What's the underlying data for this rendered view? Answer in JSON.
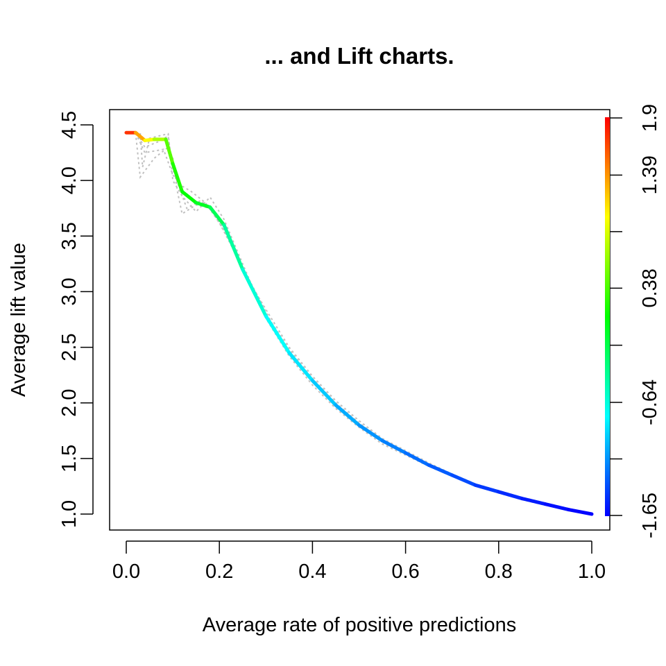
{
  "chart_data": {
    "type": "line",
    "title": "... and Lift charts.",
    "xlabel": "Average rate of positive predictions",
    "ylabel": "Average lift value",
    "xlim": [
      0.0,
      1.0
    ],
    "ylim": [
      1.0,
      4.5
    ],
    "x_ticks": [
      "0.0",
      "0.2",
      "0.4",
      "0.6",
      "0.8",
      "1.0"
    ],
    "y_ticks": [
      "1.0",
      "1.5",
      "2.0",
      "2.5",
      "3.0",
      "3.5",
      "4.0",
      "4.5"
    ],
    "grid": false,
    "colorbar": {
      "ticks": [
        "-1.65",
        "-0.64",
        "0.38",
        "1.39",
        "1.9"
      ],
      "range": [
        -1.65,
        1.9
      ],
      "colors": [
        "#0000ff",
        "#00ffff",
        "#00ff00",
        "#ffff00",
        "#ff0000"
      ]
    },
    "average_curve": [
      {
        "x": 0.0,
        "y": 4.43,
        "c": 1.9
      },
      {
        "x": 0.02,
        "y": 4.43,
        "c": 1.55
      },
      {
        "x": 0.04,
        "y": 4.36,
        "c": 1.1
      },
      {
        "x": 0.06,
        "y": 4.37,
        "c": 0.9
      },
      {
        "x": 0.085,
        "y": 4.37,
        "c": 0.55
      },
      {
        "x": 0.1,
        "y": 4.15,
        "c": 0.3
      },
      {
        "x": 0.12,
        "y": 3.9,
        "c": 0.15
      },
      {
        "x": 0.15,
        "y": 3.8,
        "c": 0.05
      },
      {
        "x": 0.18,
        "y": 3.76,
        "c": -0.05
      },
      {
        "x": 0.21,
        "y": 3.6,
        "c": -0.3
      },
      {
        "x": 0.25,
        "y": 3.2,
        "c": -0.55
      },
      {
        "x": 0.3,
        "y": 2.78,
        "c": -0.7
      },
      {
        "x": 0.35,
        "y": 2.45,
        "c": -0.8
      },
      {
        "x": 0.4,
        "y": 2.2,
        "c": -0.9
      },
      {
        "x": 0.45,
        "y": 1.98,
        "c": -1.0
      },
      {
        "x": 0.5,
        "y": 1.8,
        "c": -1.1
      },
      {
        "x": 0.55,
        "y": 1.66,
        "c": -1.17
      },
      {
        "x": 0.6,
        "y": 1.55,
        "c": -1.24
      },
      {
        "x": 0.65,
        "y": 1.44,
        "c": -1.3
      },
      {
        "x": 0.7,
        "y": 1.35,
        "c": -1.36
      },
      {
        "x": 0.75,
        "y": 1.26,
        "c": -1.42
      },
      {
        "x": 0.8,
        "y": 1.2,
        "c": -1.48
      },
      {
        "x": 0.85,
        "y": 1.14,
        "c": -1.53
      },
      {
        "x": 0.9,
        "y": 1.09,
        "c": -1.58
      },
      {
        "x": 0.95,
        "y": 1.04,
        "c": -1.62
      },
      {
        "x": 1.0,
        "y": 1.0,
        "c": -1.65
      }
    ],
    "run_curves": [
      [
        [
          0.0,
          4.43
        ],
        [
          0.02,
          4.43
        ],
        [
          0.03,
          4.03
        ],
        [
          0.06,
          4.2
        ],
        [
          0.09,
          4.3
        ],
        [
          0.1,
          4.2
        ],
        [
          0.11,
          3.9
        ],
        [
          0.12,
          3.7
        ],
        [
          0.15,
          3.78
        ],
        [
          0.18,
          3.75
        ],
        [
          0.21,
          3.55
        ],
        [
          0.25,
          3.22
        ],
        [
          0.3,
          2.8
        ],
        [
          0.35,
          2.48
        ],
        [
          0.4,
          2.22
        ],
        [
          0.45,
          2.0
        ],
        [
          0.5,
          1.82
        ],
        [
          0.55,
          1.67
        ],
        [
          0.6,
          1.56
        ],
        [
          0.65,
          1.45
        ],
        [
          0.7,
          1.36
        ],
        [
          0.75,
          1.27
        ],
        [
          0.8,
          1.21
        ],
        [
          0.85,
          1.15
        ],
        [
          0.9,
          1.1
        ],
        [
          0.95,
          1.05
        ],
        [
          1.0,
          1.0
        ]
      ],
      [
        [
          0.0,
          4.43
        ],
        [
          0.03,
          4.43
        ],
        [
          0.035,
          4.12
        ],
        [
          0.05,
          4.38
        ],
        [
          0.09,
          4.42
        ],
        [
          0.095,
          4.23
        ],
        [
          0.1,
          4.0
        ],
        [
          0.12,
          3.86
        ],
        [
          0.15,
          3.72
        ],
        [
          0.18,
          3.85
        ],
        [
          0.21,
          3.65
        ],
        [
          0.25,
          3.25
        ],
        [
          0.3,
          2.76
        ],
        [
          0.35,
          2.42
        ],
        [
          0.4,
          2.16
        ],
        [
          0.45,
          1.95
        ],
        [
          0.5,
          1.78
        ],
        [
          0.55,
          1.63
        ],
        [
          0.6,
          1.53
        ],
        [
          0.65,
          1.43
        ],
        [
          0.7,
          1.34
        ],
        [
          0.75,
          1.26
        ],
        [
          0.8,
          1.19
        ],
        [
          0.85,
          1.13
        ],
        [
          0.9,
          1.08
        ],
        [
          0.95,
          1.04
        ],
        [
          1.0,
          1.0
        ]
      ],
      [
        [
          0.0,
          4.43
        ],
        [
          0.02,
          4.43
        ],
        [
          0.04,
          4.3
        ],
        [
          0.07,
          4.35
        ],
        [
          0.09,
          4.4
        ],
        [
          0.1,
          4.1
        ],
        [
          0.13,
          3.75
        ],
        [
          0.16,
          3.82
        ],
        [
          0.19,
          3.7
        ],
        [
          0.22,
          3.5
        ],
        [
          0.26,
          3.12
        ],
        [
          0.3,
          2.84
        ],
        [
          0.35,
          2.5
        ],
        [
          0.4,
          2.24
        ],
        [
          0.45,
          2.02
        ],
        [
          0.5,
          1.84
        ],
        [
          0.55,
          1.68
        ],
        [
          0.6,
          1.57
        ],
        [
          0.65,
          1.46
        ],
        [
          0.7,
          1.36
        ],
        [
          0.75,
          1.27
        ],
        [
          0.8,
          1.21
        ],
        [
          0.85,
          1.15
        ],
        [
          0.9,
          1.09
        ],
        [
          0.95,
          1.05
        ],
        [
          1.0,
          1.0
        ]
      ],
      [
        [
          0.0,
          4.43
        ],
        [
          0.02,
          4.43
        ],
        [
          0.04,
          4.25
        ],
        [
          0.08,
          4.28
        ],
        [
          0.1,
          4.05
        ],
        [
          0.12,
          3.95
        ],
        [
          0.14,
          3.9
        ],
        [
          0.17,
          3.8
        ],
        [
          0.2,
          3.62
        ],
        [
          0.24,
          3.3
        ],
        [
          0.28,
          2.98
        ],
        [
          0.32,
          2.66
        ],
        [
          0.36,
          2.4
        ],
        [
          0.41,
          2.15
        ],
        [
          0.46,
          1.95
        ],
        [
          0.52,
          1.74
        ],
        [
          0.56,
          1.62
        ],
        [
          0.61,
          1.52
        ],
        [
          0.66,
          1.42
        ],
        [
          0.71,
          1.33
        ],
        [
          0.76,
          1.25
        ],
        [
          0.81,
          1.19
        ],
        [
          0.86,
          1.13
        ],
        [
          0.91,
          1.08
        ],
        [
          0.96,
          1.03
        ],
        [
          1.0,
          1.0
        ]
      ]
    ]
  }
}
